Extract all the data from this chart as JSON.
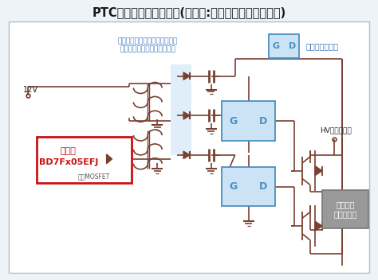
{
  "title": "PTCヒーターの回路構成(新製品:ゲートドライバ用電源)",
  "bg_color": "#eef3f8",
  "white_bg": "#ffffff",
  "title_color": "#1a1a1a",
  "title_fontsize": 10.5,
  "lc": "#7a4030",
  "blue_text": "#3a7bbf",
  "label_diode": "ショットキーバリアダイオード\nファストリカバリダイオード",
  "label_gd": "ゲートドライバ",
  "label_new1": "新製品",
  "label_new2": "BD7Fx05EFJ",
  "label_mosfet": "内蔵MOSFET",
  "label_12v": "12V",
  "label_hv": "HVバッテリー",
  "label_heater": "ヒーター\nエレメント",
  "gd_fill": "#cce3f5",
  "gd_edge": "#4a90c0",
  "np_edge": "#cc1111",
  "np_text": "#cc1111",
  "heater_fill": "#999999",
  "highlight": "#d5e9f8",
  "border_edge": "#a8c0d0"
}
